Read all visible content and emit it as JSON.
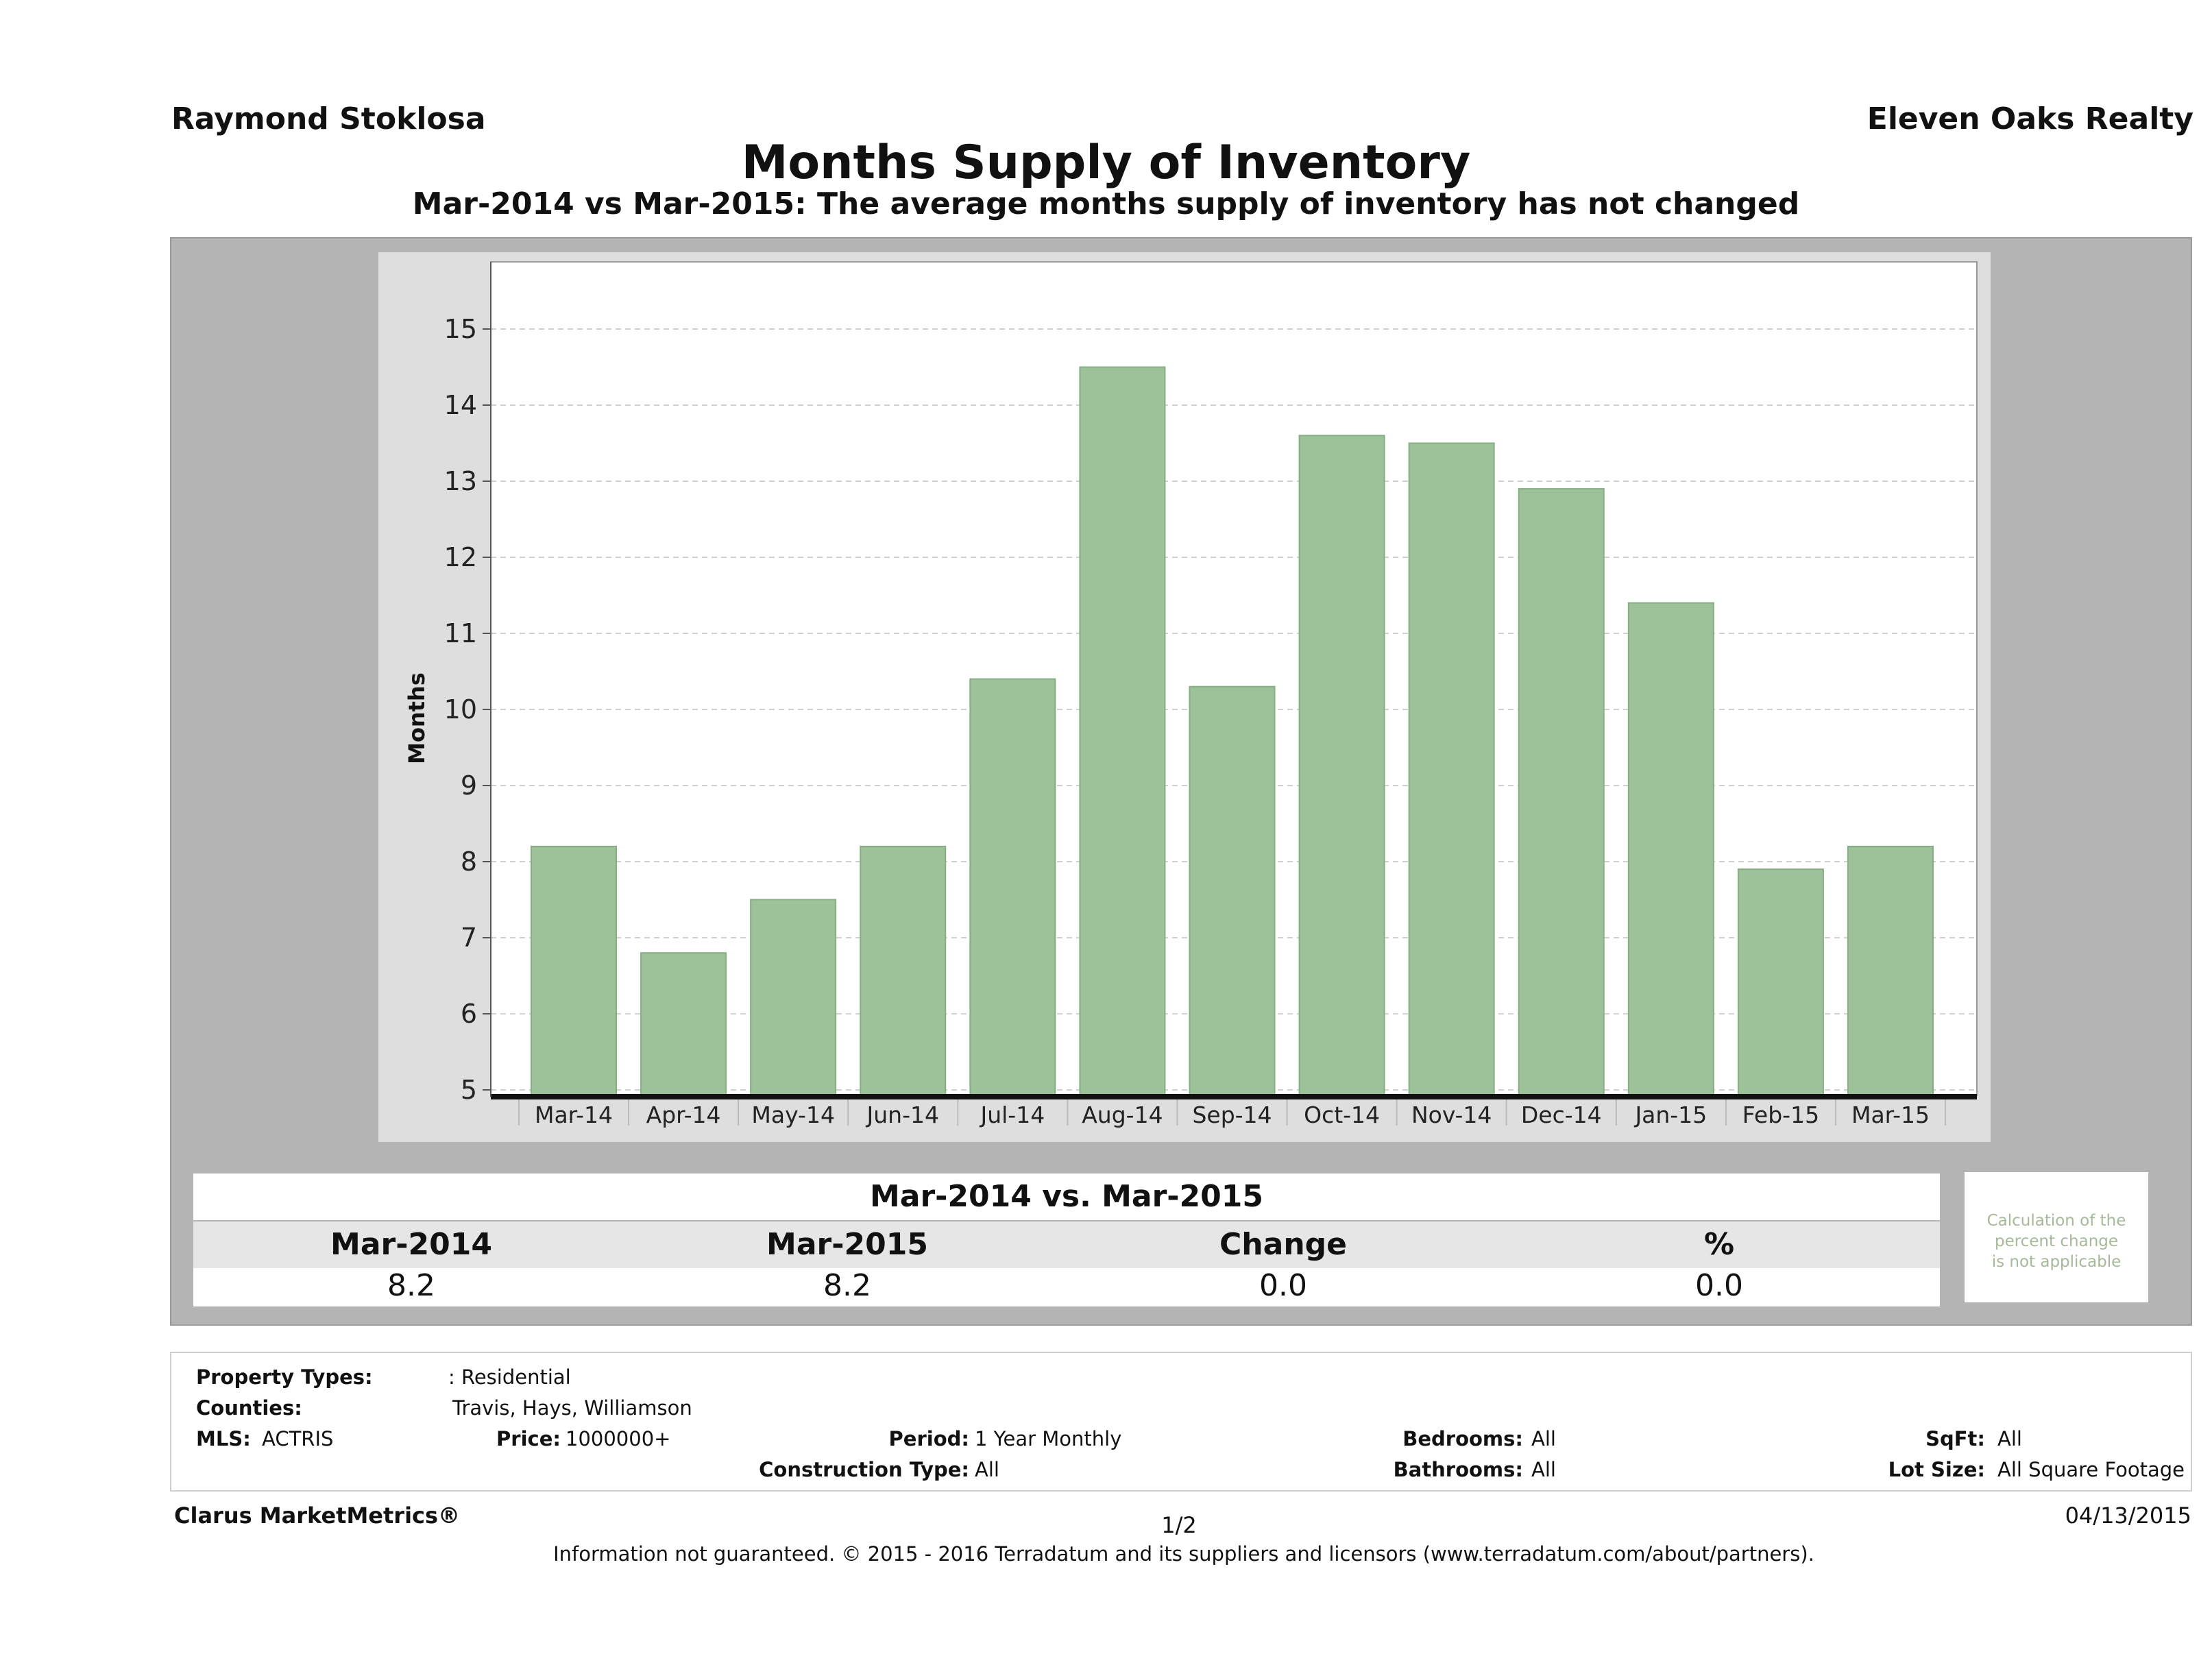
{
  "header": {
    "agent_name": "Raymond Stoklosa",
    "company_name": "Eleven Oaks Realty",
    "title": "Months Supply of Inventory",
    "subtitle": "Mar-2014 vs Mar-2015: The average months supply of inventory has not changed"
  },
  "chart_data": {
    "type": "bar",
    "categories": [
      "Mar-14",
      "Apr-14",
      "May-14",
      "Jun-14",
      "Jul-14",
      "Aug-14",
      "Sep-14",
      "Oct-14",
      "Nov-14",
      "Dec-14",
      "Jan-15",
      "Feb-15",
      "Mar-15"
    ],
    "values": [
      8.2,
      6.8,
      7.5,
      8.2,
      10.4,
      14.5,
      10.3,
      13.6,
      13.5,
      12.9,
      11.4,
      7.9,
      8.2
    ],
    "ylabel": "Months",
    "ylim": [
      4.8,
      15.9
    ],
    "yticks": [
      5,
      6,
      7,
      8,
      9,
      10,
      11,
      12,
      13,
      14,
      15
    ],
    "bar_color": "#9dc29a",
    "grid": true
  },
  "comparison": {
    "title": "Mar-2014 vs. Mar-2015",
    "headers": [
      "Mar-2014",
      "Mar-2015",
      "Change",
      "%"
    ],
    "values": [
      "8.2",
      "8.2",
      "0.0",
      "0.0"
    ],
    "note_lines": [
      "Calculation of the",
      "percent change",
      "is not applicable"
    ]
  },
  "criteria": {
    "property_types_label": "Property Types:",
    "property_types_value": ": Residential",
    "counties_label": "Counties:",
    "counties_value": "Travis, Hays, Williamson",
    "mls_label": "MLS:",
    "mls_value": "ACTRIS",
    "price_label": "Price:",
    "price_value": "1000000+",
    "period_label": "Period:",
    "period_value": "1 Year Monthly",
    "construction_label": "Construction Type:",
    "construction_value": "All",
    "bedrooms_label": "Bedrooms:",
    "bedrooms_value": "All",
    "bathrooms_label": "Bathrooms:",
    "bathrooms_value": "All",
    "sqft_label": "SqFt:",
    "sqft_value": "All",
    "lotsize_label": "Lot Size:",
    "lotsize_value": "All Square Footage"
  },
  "footer": {
    "brand": "Clarus MarketMetrics®",
    "page": "1/2",
    "date": "04/13/2015",
    "disclaimer": "Information not guaranteed. © 2015 - 2016 Terradatum and its suppliers and licensors (www.terradatum.com/about/partners)."
  }
}
